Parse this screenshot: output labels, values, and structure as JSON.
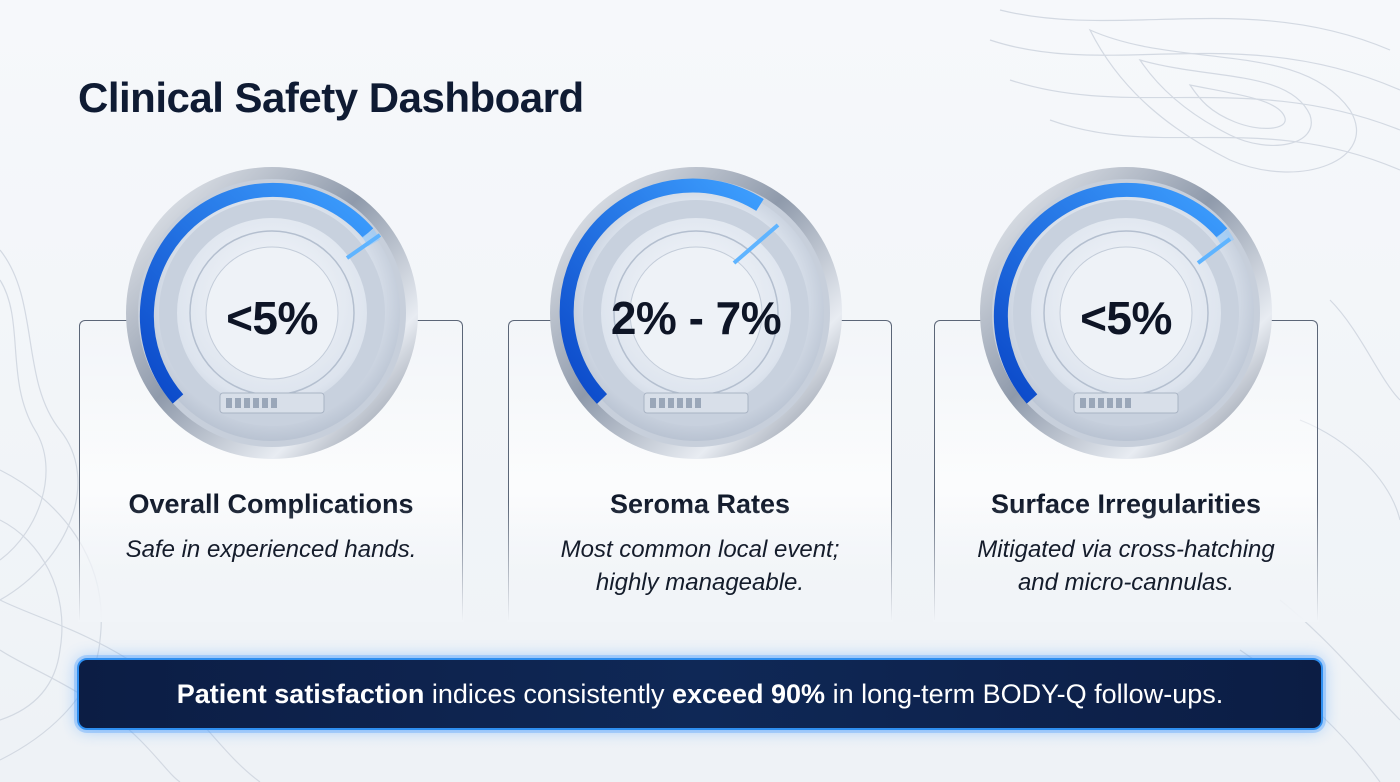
{
  "page": {
    "title": "Clinical Safety Dashboard"
  },
  "cards": [
    {
      "gauge_value": "<5%",
      "title": "Overall Complications",
      "subtitle_lines": [
        "Safe in experienced hands."
      ]
    },
    {
      "gauge_value": "2% - 7%",
      "title": "Seroma Rates",
      "subtitle_lines": [
        "Most common local event;",
        "highly manageable."
      ]
    },
    {
      "gauge_value": "<5%",
      "title": "Surface Irregularities",
      "subtitle_lines": [
        "Mitigated via cross-hatching",
        "and micro-cannulas."
      ]
    }
  ],
  "banner": {
    "part1_bold": "Patient satisfaction",
    "part2": " indices consistently ",
    "part3_bold": "exceed 90%",
    "part4": " in long-term BODY-Q follow-ups."
  },
  "colors": {
    "title": "#0f1b33",
    "accent_blue": "#1f6fe0",
    "banner_bg": "#0f2856",
    "banner_border": "#2f8ff0"
  },
  "icons": {
    "gauge": "gauge-dial-icon",
    "background": "topographic-lines-pattern"
  }
}
